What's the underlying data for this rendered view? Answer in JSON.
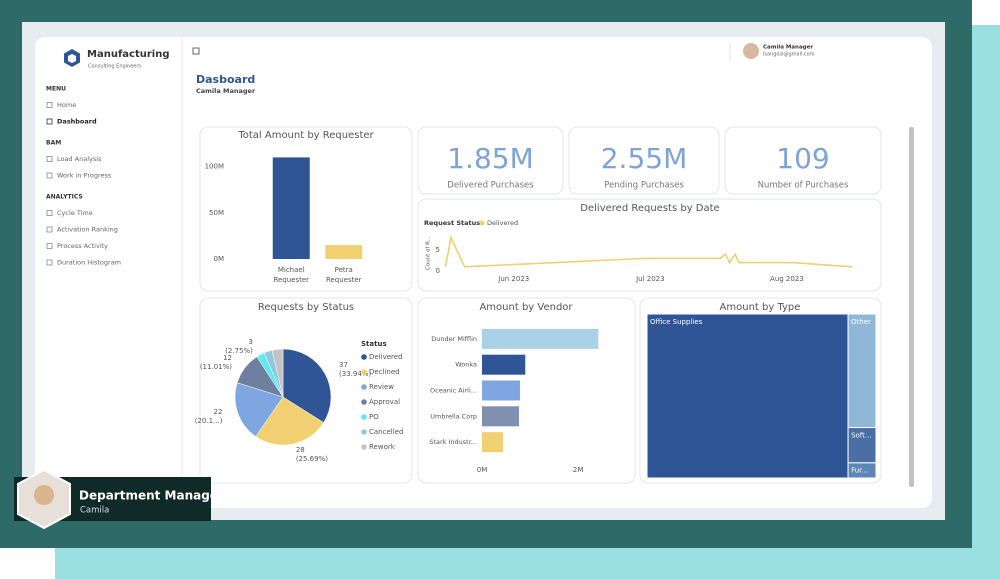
{
  "sidebar": {
    "brand": {
      "name": "Manufacturing",
      "tagline": "Consulting Engineers"
    },
    "sections": [
      {
        "title": "MENU",
        "items": [
          "Home",
          "Dashboard"
        ]
      },
      {
        "title": "BAM",
        "items": [
          "Load Analysis",
          "Work in Progress"
        ]
      },
      {
        "title": "ANALYTICS",
        "items": [
          "Cycle Time",
          "Activation Ranking",
          "Process Activity",
          "Duration Histogram"
        ]
      }
    ],
    "active": "Dashboard"
  },
  "header": {
    "title": "Dasboard",
    "subtitle": "Camila Manager",
    "user_name": "Camila Manager",
    "user_email": "lsangosl@gmail.com"
  },
  "kpis": [
    {
      "value": "1.85M",
      "label": "Delivered Purchases"
    },
    {
      "value": "2.55M",
      "label": "Pending Purchases"
    },
    {
      "value": "109",
      "label": "Number of Purchases"
    }
  ],
  "chart_data": [
    {
      "type": "bar",
      "title": "Total Amount by Requester",
      "categories": [
        "Michael Requester",
        "Petra Requester"
      ],
      "values": [
        110000000,
        15000000
      ],
      "colors": [
        "#2f5597",
        "#f0d070"
      ],
      "ylim": [
        0,
        118000000
      ],
      "yticks": [
        {
          "value": 0,
          "label": "0M"
        },
        {
          "value": 50000000,
          "label": "50M"
        },
        {
          "value": 100000000,
          "label": "100M"
        }
      ]
    },
    {
      "type": "line",
      "title": "Delivered Requests by Date",
      "legend_title": "Request Status",
      "y_label": "Count of R...",
      "series": [
        {
          "name": "Delivered",
          "color": "#f0d070",
          "x": [
            5.5,
            5.54,
            5.64,
            6.95,
            7.51,
            7.55,
            7.58,
            7.62,
            7.65,
            8.04,
            8.48
          ],
          "values": [
            1,
            8,
            1,
            3,
            3,
            4,
            2,
            4,
            2,
            2,
            1
          ]
        }
      ],
      "xlim": [
        5.35,
        8.55
      ],
      "xticks": [
        {
          "value": 6,
          "label": "Jun 2023"
        },
        {
          "value": 7,
          "label": "Jul 2023"
        },
        {
          "value": 8,
          "label": "Aug 2023"
        }
      ],
      "ylim": [
        0,
        9
      ],
      "yticks": [
        0,
        5
      ]
    },
    {
      "type": "pie",
      "title": "Requests by Status",
      "legend_title": "Status",
      "categories": [
        "Delivered",
        "Declined",
        "Review",
        "Approval",
        "PO",
        "Cancelled",
        "Rework"
      ],
      "values": [
        37,
        28,
        22,
        12,
        3,
        3,
        4
      ],
      "value_labels": [
        "37",
        "28",
        "22",
        "12",
        "3",
        null,
        null
      ],
      "percent_labels": [
        "(33.94%)",
        "(25.69%)",
        "(20.1...)",
        "(11.01%)",
        "(2.75%)",
        null,
        null
      ],
      "colors": [
        "#2f5597",
        "#f0d070",
        "#7fa6e0",
        "#6f7f9f",
        "#5ee8f0",
        "#8ec9dd",
        "#c4c4c4"
      ]
    },
    {
      "type": "hbar",
      "title": "Amount by Vendor",
      "categories": [
        "Dunder Mifflin",
        "Wonka",
        "Oceanic Airli...",
        "Umbrella Corp",
        "Stark Industr..."
      ],
      "values": [
        2420000,
        900000,
        790000,
        770000,
        440000
      ],
      "colors": [
        "#a9d2e8",
        "#2f5597",
        "#7fa6e0",
        "#8090b0",
        "#f0d070"
      ],
      "xlim": [
        0,
        2600000
      ],
      "xticks": [
        {
          "value": 0,
          "label": "0M"
        },
        {
          "value": 2000000,
          "label": "2M"
        }
      ]
    },
    {
      "type": "treemap",
      "title": "Amount by Type",
      "categories": [
        "Office Supplies",
        "Other",
        "Soft...",
        "Fur..."
      ],
      "values": [
        4680000,
        450000,
        140000,
        60000
      ],
      "colors": [
        "#2f5597",
        "#8fb8d8",
        "#4a6fa5",
        "#5d86b8"
      ]
    }
  ],
  "overlay": {
    "role": "Department Manager",
    "name": "Camila"
  }
}
